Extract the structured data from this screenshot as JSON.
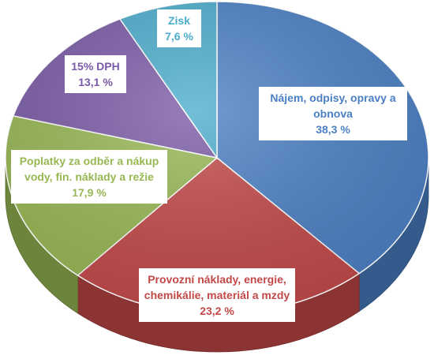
{
  "chart_data": {
    "type": "pie",
    "slices": [
      {
        "lines": [
          "Nájem, odpisy, opravy a",
          "obnova"
        ],
        "value_label": "38,3 %",
        "value": 38.3,
        "color": "#4a7fc4"
      },
      {
        "lines": [
          "Provozní náklady, energie,",
          "chemikálie, materiál a mzdy"
        ],
        "value_label": "23,2 %",
        "value": 23.2,
        "color": "#c34848"
      },
      {
        "lines": [
          "Poplatky za odběr a nákup",
          "vody, fin. náklady a režie"
        ],
        "value_label": "17,9 %",
        "value": 17.9,
        "color": "#97b853"
      },
      {
        "lines": [
          "15% DPH"
        ],
        "value_label": "13,1 %",
        "value": 13.1,
        "color": "#7a5aa6"
      },
      {
        "lines": [
          "Zisk"
        ],
        "value_label": "7,6 %",
        "value": 7.6,
        "color": "#4aaccc"
      }
    ]
  }
}
